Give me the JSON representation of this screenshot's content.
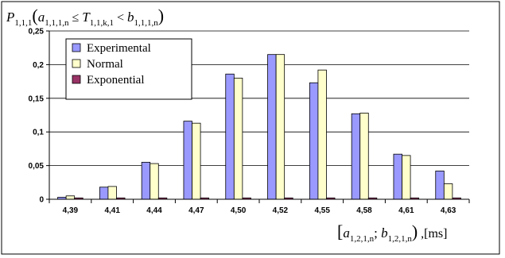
{
  "chart_data": {
    "type": "bar",
    "categories": [
      "4,39",
      "4,41",
      "4,44",
      "4,47",
      "4,50",
      "4,52",
      "4,55",
      "4,58",
      "4,61",
      "4,63"
    ],
    "series": [
      {
        "name": "Experimental",
        "color": "#9999ff",
        "values": [
          0.003,
          0.018,
          0.055,
          0.116,
          0.186,
          0.215,
          0.173,
          0.127,
          0.067,
          0.042
        ]
      },
      {
        "name": "Normal",
        "color": "#ffffcc",
        "values": [
          0.005,
          0.019,
          0.053,
          0.113,
          0.18,
          0.215,
          0.192,
          0.128,
          0.065,
          0.023
        ]
      },
      {
        "name": "Exponential",
        "color": "#993366",
        "values": [
          0.002,
          0.002,
          0.002,
          0.002,
          0.002,
          0.002,
          0.002,
          0.002,
          0.002,
          0.002
        ]
      }
    ],
    "yticks": [
      "0",
      "0,05",
      "0,1",
      "0,15",
      "0,2",
      "0,25"
    ],
    "ylim": [
      0,
      0.25
    ],
    "ylabel": {
      "main": "P",
      "main_sub": "1,1,1",
      "open": "(",
      "a": "a",
      "a_sub": "1,1,1,n",
      "op1": " ≤ ",
      "T": "T",
      "T_sub": "1,1,k,1",
      "op2": " < ",
      "b": "b",
      "b_sub": "1,1,1,n",
      "close": ")"
    },
    "xlabel": {
      "open": "[",
      "a": "a",
      "a_sub": "1,2,1,n",
      "sep": "; ",
      "b": "b",
      "b_sub": "1,2,1,n",
      "close": ")",
      "unit": ",[ms]"
    },
    "grid": true,
    "legend_position": "top-left"
  }
}
